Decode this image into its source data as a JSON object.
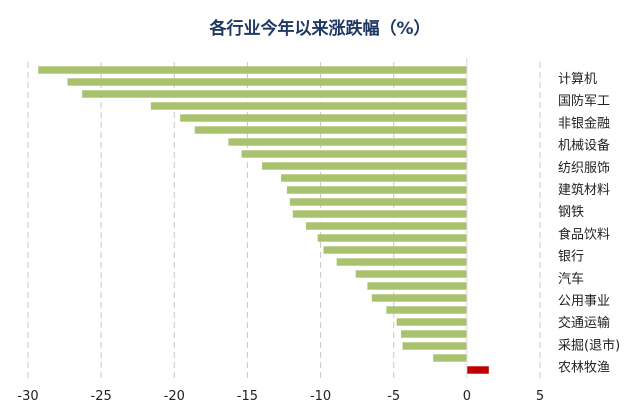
{
  "chart_data": {
    "type": "bar",
    "orientation": "horizontal",
    "title": "各行业今年以来涨跌幅（%）",
    "xlabel": "",
    "ylabel": "",
    "xlim": [
      -30,
      5
    ],
    "xticks": [
      -30,
      -25,
      -20,
      -15,
      -10,
      -5,
      0,
      5
    ],
    "grid": "vertical dashed",
    "legend": "none",
    "category_labels_shown": [
      "计算机",
      "国防军工",
      "非银金融",
      "机械设备",
      "纺织服饰",
      "建筑材料",
      "钢铁",
      "食品饮料",
      "银行",
      "汽车",
      "公用事业",
      "交通运输",
      "采掘(退市)",
      "农林牧渔"
    ],
    "values": [
      -29.3,
      -27.3,
      -26.3,
      -21.6,
      -19.6,
      -18.6,
      -16.3,
      -15.4,
      -14.0,
      -12.7,
      -12.3,
      -12.1,
      -11.9,
      -11.0,
      -10.2,
      -9.8,
      -8.9,
      -7.6,
      -6.8,
      -6.5,
      -5.5,
      -4.8,
      -4.5,
      -4.4,
      -2.3,
      1.5
    ],
    "colors": {
      "negative": "#a9c26e",
      "positive": "#c00000"
    }
  }
}
